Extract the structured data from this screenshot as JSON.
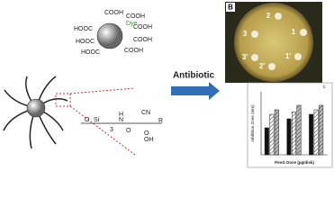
{
  "molecule": {
    "dye": "Dye",
    "groups": [
      "COOH",
      "COOH",
      "HOOC",
      "COOH",
      "HOOC",
      "COOH",
      "HOOC",
      "COOH"
    ]
  },
  "linker": {
    "labels": [
      "O",
      "Si",
      "3",
      "H",
      "N",
      "O",
      "CN",
      "R",
      "O",
      "OH"
    ]
  },
  "arrow_label": "Antibiotic",
  "plate": {
    "panel": "B",
    "discs": [
      "2",
      "1",
      "3",
      "3'",
      "2'",
      "1'"
    ]
  },
  "chart_data": {
    "type": "bar",
    "panel": "C",
    "xlabel": "PenG Dose (µg/disk)",
    "ylabel": "Inhibition Zone (mm)",
    "categories": [
      null,
      null,
      null
    ],
    "series": [
      {
        "color": "#111111",
        "hatch": false,
        "values": [
          6,
          8,
          9
        ]
      },
      {
        "color": "#ffffff",
        "hatch": true,
        "values": [
          9,
          9.5,
          10
        ]
      },
      {
        "color": "#bbbbbb",
        "hatch": true,
        "values": [
          10,
          11,
          11
        ]
      }
    ],
    "ylim": [
      0,
      14
    ]
  }
}
